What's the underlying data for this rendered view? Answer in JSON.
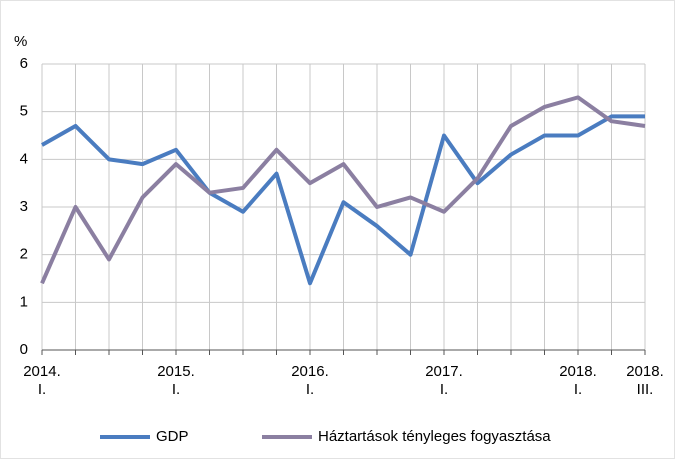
{
  "chart_data": {
    "type": "line",
    "y_label": "%",
    "categories": [
      "2014. I.",
      null,
      null,
      null,
      "2015. I.",
      null,
      null,
      null,
      "2016. I.",
      null,
      null,
      null,
      "2017. I.",
      null,
      null,
      null,
      "2018. I.",
      null,
      "2018. III."
    ],
    "series": [
      {
        "name": "GDP",
        "color": "#4a7cc0",
        "values": [
          4.3,
          4.7,
          4.0,
          3.9,
          4.2,
          3.3,
          2.9,
          3.7,
          1.4,
          3.1,
          2.6,
          2.0,
          4.5,
          3.5,
          4.1,
          4.5,
          4.5,
          4.9,
          4.9
        ]
      },
      {
        "name": "Háztartások tényleges fogyasztása",
        "color": "#8b7fa1",
        "values": [
          1.4,
          3.0,
          1.9,
          3.2,
          3.9,
          3.3,
          3.4,
          4.2,
          3.5,
          3.9,
          3.0,
          3.2,
          2.9,
          3.6,
          4.7,
          5.1,
          5.3,
          4.8,
          4.7
        ]
      }
    ],
    "ylim": [
      0,
      6
    ],
    "yticks": [
      0,
      1,
      2,
      3,
      4,
      5,
      6
    ],
    "grid": true
  }
}
